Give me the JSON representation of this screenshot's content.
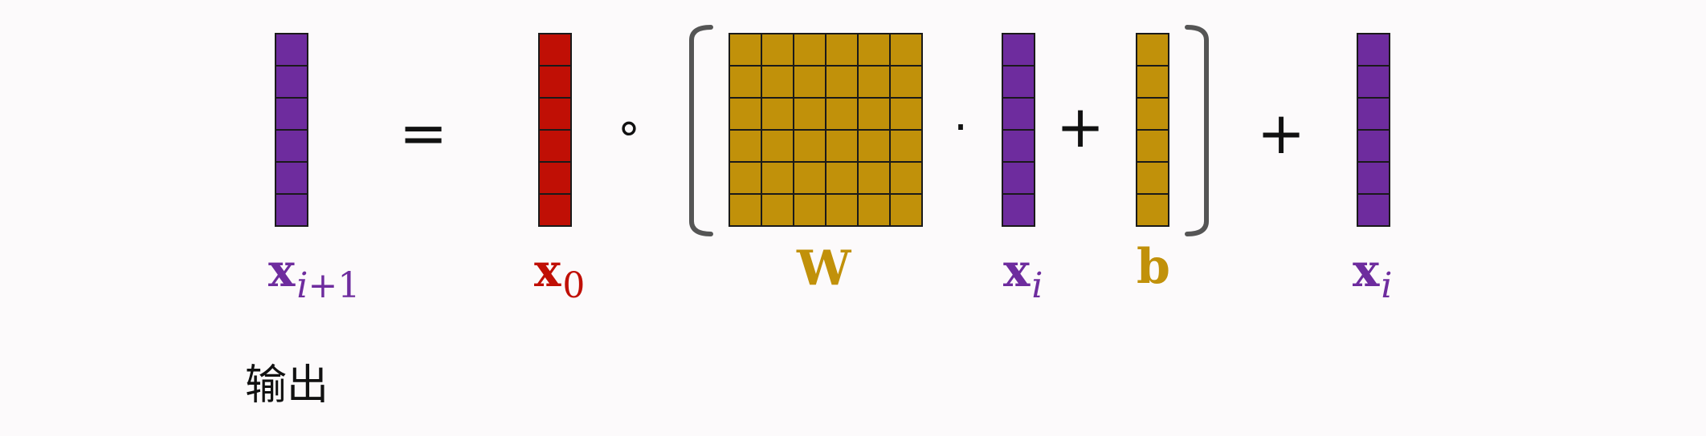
{
  "diagram": {
    "description_free": true,
    "colors": {
      "purple": "#6e2c9e",
      "red": "#c00f05",
      "gold": "#c1910a",
      "grid_line": "#1a1a1a",
      "bracket": "#555555"
    },
    "operators": {
      "equals": "=",
      "hadamard": "∘",
      "dot": "·",
      "plus_inner": "+",
      "plus_outer": "+"
    },
    "labels": {
      "x_next": {
        "base": "x",
        "sub_var": "i",
        "sub_rest": "+1"
      },
      "x0": {
        "base": "x",
        "sub": "0"
      },
      "W": {
        "base": "W"
      },
      "xi_inner": {
        "base": "x",
        "sub_var": "i"
      },
      "b": {
        "base": "b"
      },
      "xi_outer": {
        "base": "x",
        "sub_var": "i"
      }
    },
    "matrices": {
      "x_next": {
        "rows": 6,
        "cols": 1,
        "color_key": "purple"
      },
      "x0": {
        "rows": 6,
        "cols": 1,
        "color_key": "red"
      },
      "W": {
        "rows": 6,
        "cols": 6,
        "color_key": "gold"
      },
      "xi_inner": {
        "rows": 6,
        "cols": 1,
        "color_key": "purple"
      },
      "b": {
        "rows": 6,
        "cols": 1,
        "color_key": "gold"
      },
      "xi_outer": {
        "rows": 6,
        "cols": 1,
        "color_key": "purple"
      }
    },
    "caption": "输出"
  }
}
